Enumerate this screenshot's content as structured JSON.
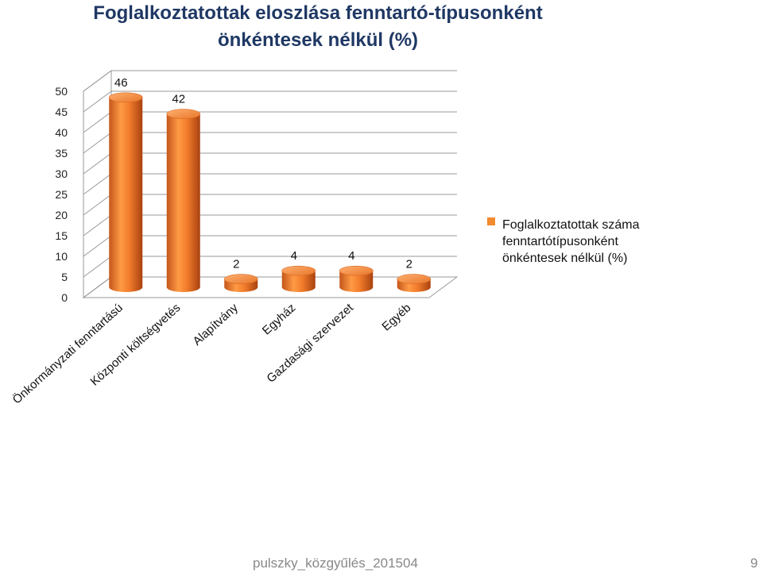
{
  "slide": {
    "title_line1": "Foglalkoztatottak eloszlása fenntartó-típusonként",
    "title_line2": "önkéntesek nélkül (%)",
    "footer": "pulszky_közgyűlés_201504",
    "page_number": "9"
  },
  "chart_data": {
    "type": "bar",
    "title": "",
    "categories": [
      "Önkormányzati fenntartású",
      "Központi költségvetés",
      "Alapítvány",
      "Egyház",
      "Gazdasági szervezet",
      "Egyéb"
    ],
    "series": [
      {
        "name": "Foglalkoztatottak száma fenntartótípusonként önkéntesek nélkül (%)",
        "legend_lines": [
          "Foglalkoztatottak száma",
          "fenntartótípusonként",
          "önkéntesek nélkül (%)"
        ],
        "values": [
          46,
          42,
          2,
          4,
          4,
          2
        ],
        "color": "#f28a2e"
      }
    ],
    "data_labels": [
      "46",
      "42",
      "2",
      "4",
      "4",
      "2"
    ],
    "y_ticks": [
      "0",
      "5",
      "10",
      "15",
      "20",
      "25",
      "30",
      "35",
      "40",
      "45",
      "50"
    ],
    "ylim": [
      0,
      50
    ],
    "grid": true,
    "style": "3d-cylinder",
    "legend_position": "right"
  }
}
